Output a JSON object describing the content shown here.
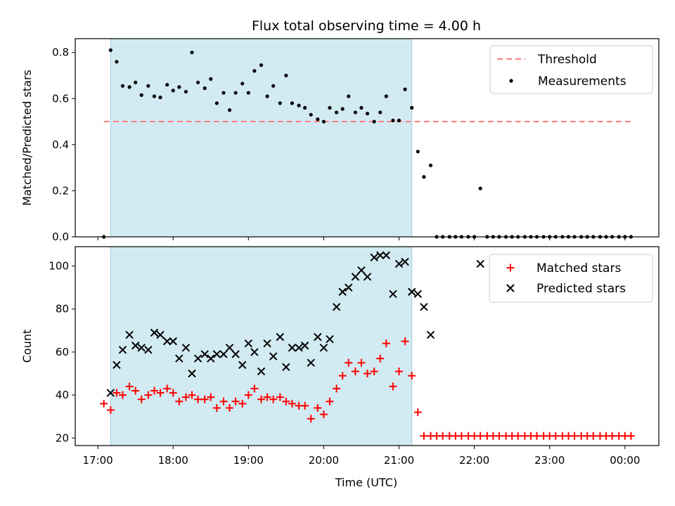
{
  "figure": {
    "title": "Flux total observing time = 4.00 h",
    "xlabel": "Time (UTC)",
    "x_ticks": [
      {
        "t": 17.0,
        "label": "17:00"
      },
      {
        "t": 18.0,
        "label": "18:00"
      },
      {
        "t": 19.0,
        "label": "19:00"
      },
      {
        "t": 20.0,
        "label": "20:00"
      },
      {
        "t": 21.0,
        "label": "21:00"
      },
      {
        "t": 22.0,
        "label": "22:00"
      },
      {
        "t": 23.0,
        "label": "23:00"
      },
      {
        "t": 24.0,
        "label": "00:00"
      }
    ],
    "xlim": [
      16.7,
      24.45
    ],
    "observing_window": [
      17.17,
      21.17
    ],
    "shade_color": "#add8e6",
    "colors": {
      "threshold": "#ff7f7f",
      "measurements": "#000000",
      "matched": "#ff0000",
      "predicted": "#000000"
    }
  },
  "chart_data": [
    {
      "type": "scatter",
      "ylabel": "Matched/Predicted stars",
      "ylim": [
        0,
        0.86
      ],
      "y_ticks": [
        {
          "v": 0.0,
          "label": "0.0"
        },
        {
          "v": 0.2,
          "label": "0.2"
        },
        {
          "v": 0.4,
          "label": "0.4"
        },
        {
          "v": 0.6,
          "label": "0.6"
        },
        {
          "v": 0.8,
          "label": "0.8"
        }
      ],
      "legend": {
        "position": "upper right",
        "threshold_label": "Threshold",
        "measurements_label": "Measurements"
      },
      "threshold": {
        "value": 0.5,
        "x_start": 17.08,
        "x_end": 24.1
      },
      "x": [
        17.08,
        17.17,
        17.25,
        17.33,
        17.42,
        17.5,
        17.58,
        17.67,
        17.75,
        17.83,
        17.92,
        18.0,
        18.08,
        18.17,
        18.25,
        18.33,
        18.42,
        18.5,
        18.58,
        18.67,
        18.75,
        18.83,
        18.92,
        19.0,
        19.08,
        19.17,
        19.25,
        19.33,
        19.42,
        19.5,
        19.58,
        19.67,
        19.75,
        19.83,
        19.92,
        20.0,
        20.08,
        20.17,
        20.25,
        20.33,
        20.42,
        20.5,
        20.58,
        20.67,
        20.75,
        20.83,
        20.92,
        21.0,
        21.08,
        21.17,
        21.25,
        21.33,
        21.42,
        21.5,
        21.58,
        21.67,
        21.75,
        21.83,
        21.92,
        22.0,
        22.08,
        22.17,
        22.25,
        22.33,
        22.42,
        22.5,
        22.58,
        22.67,
        22.75,
        22.83,
        22.92,
        23.0,
        23.08,
        23.17,
        23.25,
        23.33,
        23.42,
        23.5,
        23.58,
        23.67,
        23.75,
        23.83,
        23.92,
        24.0,
        24.08
      ],
      "y": [
        0.0,
        0.81,
        0.76,
        0.655,
        0.65,
        0.67,
        0.615,
        0.655,
        0.61,
        0.605,
        0.66,
        0.635,
        0.65,
        0.63,
        0.8,
        0.67,
        0.645,
        0.685,
        0.58,
        0.625,
        0.55,
        0.625,
        0.665,
        0.625,
        0.72,
        0.745,
        0.61,
        0.655,
        0.58,
        0.7,
        0.58,
        0.57,
        0.56,
        0.53,
        0.51,
        0.5,
        0.56,
        0.54,
        0.555,
        0.61,
        0.54,
        0.56,
        0.535,
        0.5,
        0.54,
        0.61,
        0.505,
        0.505,
        0.64,
        0.56,
        0.37,
        0.26,
        0.31,
        0.0,
        0.0,
        0.0,
        0.0,
        0.0,
        0.0,
        0.0,
        0.21,
        0.0,
        0.0,
        0.0,
        0.0,
        0.0,
        0.0,
        0.0,
        0.0,
        0.0,
        0.0,
        0.0,
        0.0,
        0.0,
        0.0,
        0.0,
        0.0,
        0.0,
        0.0,
        0.0,
        0.0,
        0.0,
        0.0,
        0.0,
        0.0
      ]
    },
    {
      "type": "scatter",
      "ylabel": "Count",
      "ylim": [
        16.5,
        109
      ],
      "y_ticks": [
        {
          "v": 20,
          "label": "20"
        },
        {
          "v": 40,
          "label": "40"
        },
        {
          "v": 60,
          "label": "60"
        },
        {
          "v": 80,
          "label": "80"
        },
        {
          "v": 100,
          "label": "100"
        }
      ],
      "legend": {
        "position": "upper right",
        "matched_label": "Matched stars",
        "predicted_label": "Predicted stars"
      },
      "series": [
        {
          "name": "Matched stars",
          "marker": "+",
          "x": [
            17.08,
            17.17,
            17.25,
            17.33,
            17.42,
            17.5,
            17.58,
            17.67,
            17.75,
            17.83,
            17.92,
            18.0,
            18.08,
            18.17,
            18.25,
            18.33,
            18.42,
            18.5,
            18.58,
            18.67,
            18.75,
            18.83,
            18.92,
            19.0,
            19.08,
            19.17,
            19.25,
            19.33,
            19.42,
            19.5,
            19.58,
            19.67,
            19.75,
            19.83,
            19.92,
            20.0,
            20.08,
            20.17,
            20.25,
            20.33,
            20.42,
            20.5,
            20.58,
            20.67,
            20.75,
            20.83,
            20.92,
            21.0,
            21.08,
            21.17,
            21.25,
            21.33,
            21.42,
            21.5,
            21.58,
            21.67,
            21.75,
            21.83,
            21.92,
            22.0,
            22.08,
            22.17,
            22.25,
            22.33,
            22.42,
            22.5,
            22.58,
            22.67,
            22.75,
            22.83,
            22.92,
            23.0,
            23.08,
            23.17,
            23.25,
            23.33,
            23.42,
            23.5,
            23.58,
            23.67,
            23.75,
            23.83,
            23.92,
            24.0,
            24.08
          ],
          "y": [
            36,
            33,
            41,
            40,
            44,
            42,
            38,
            40,
            42,
            41,
            43,
            41,
            37,
            39,
            40,
            38,
            38,
            39,
            34,
            37,
            34,
            37,
            36,
            40,
            43,
            38,
            39,
            38,
            39,
            37,
            36,
            35,
            35,
            29,
            34,
            31,
            37,
            43,
            49,
            55,
            51,
            55,
            50,
            51,
            57,
            64,
            44,
            51,
            65,
            49,
            32,
            21,
            21,
            21,
            21,
            21,
            21,
            21,
            21,
            21,
            21,
            21,
            21,
            21,
            21,
            21,
            21,
            21,
            21,
            21,
            21,
            21,
            21,
            21,
            21,
            21,
            21,
            21,
            21,
            21,
            21,
            21,
            21,
            21,
            21
          ]
        },
        {
          "name": "Predicted stars",
          "marker": "x",
          "x": [
            17.17,
            17.25,
            17.33,
            17.42,
            17.5,
            17.58,
            17.67,
            17.75,
            17.83,
            17.92,
            18.0,
            18.08,
            18.17,
            18.25,
            18.33,
            18.42,
            18.5,
            18.58,
            18.67,
            18.75,
            18.83,
            18.92,
            19.0,
            19.08,
            19.17,
            19.25,
            19.33,
            19.42,
            19.5,
            19.58,
            19.67,
            19.75,
            19.83,
            19.92,
            20.0,
            20.08,
            20.17,
            20.25,
            20.33,
            20.42,
            20.5,
            20.58,
            20.67,
            20.75,
            20.83,
            20.92,
            21.0,
            21.08,
            21.17,
            21.25,
            21.33,
            21.42,
            22.08
          ],
          "y": [
            41,
            54,
            61,
            68,
            63,
            62,
            61,
            69,
            68,
            65,
            65,
            57,
            62,
            50,
            57,
            59,
            57,
            59,
            59,
            62,
            59,
            54,
            64,
            60,
            51,
            64,
            58,
            67,
            53,
            62,
            62,
            63,
            55,
            67,
            62,
            66,
            81,
            88,
            90,
            95,
            98,
            95,
            104,
            105,
            105,
            87,
            101,
            102,
            88,
            87,
            81,
            68,
            101
          ]
        }
      ]
    }
  ]
}
